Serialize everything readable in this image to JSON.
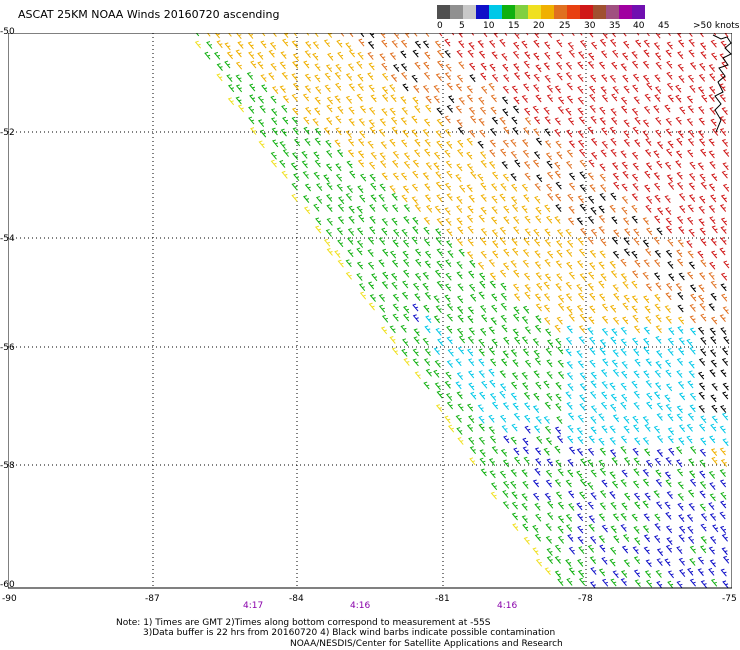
{
  "title": "ASCAT 25KM NOAA Winds 20160720 ascending",
  "legend": {
    "colors": [
      "#505050",
      "#909090",
      "#c8c8c8",
      "#1010c8",
      "#00c8e8",
      "#10b010",
      "#80d040",
      "#f0e020",
      "#f0b000",
      "#e07020",
      "#e84010",
      "#d01818",
      "#a05030",
      "#a05080",
      "#a000a0",
      "#7010b0"
    ],
    "labels": [
      "0",
      "5",
      "10",
      "15",
      "20",
      "25",
      "30",
      "35",
      "40",
      "45",
      ">50 knots"
    ]
  },
  "lat_labels": [
    "-50",
    "-52",
    "-54",
    "-56",
    "-58",
    "-60"
  ],
  "lon_labels": [
    "-90",
    "-87",
    "-84",
    "-81",
    "-78",
    "-75"
  ],
  "time_labels": [
    "4:17",
    "4:16",
    "4:16"
  ],
  "note_lines": [
    "Note: 1) Times are GMT 2)Times along bottom correspond to measurement at -55S",
    "3)Data buffer is 22 hrs from 20160720 4) Black wind barbs indicate possible contamination"
  ],
  "credit": "NOAA/NESDIS/Center for Satellite Applications and Research",
  "map": {
    "lat_range": [
      -60,
      -50
    ],
    "lon_range": [
      -90,
      -75
    ],
    "grid": "dotted"
  },
  "wind_bands": [
    {
      "name": "calm-swath-edge",
      "color": "#f0e020"
    },
    {
      "name": "light-winds",
      "color": "#10b010"
    },
    {
      "name": "moderate-winds",
      "color": "#1010c8"
    },
    {
      "name": "moderate-winds-cyan",
      "color": "#00c8e8"
    },
    {
      "name": "strong-winds",
      "color": "#f0b000"
    },
    {
      "name": "gale-winds",
      "color": "#e07020"
    },
    {
      "name": "storm-winds",
      "color": "#d01818"
    },
    {
      "name": "contaminated",
      "color": "#000000"
    }
  ]
}
